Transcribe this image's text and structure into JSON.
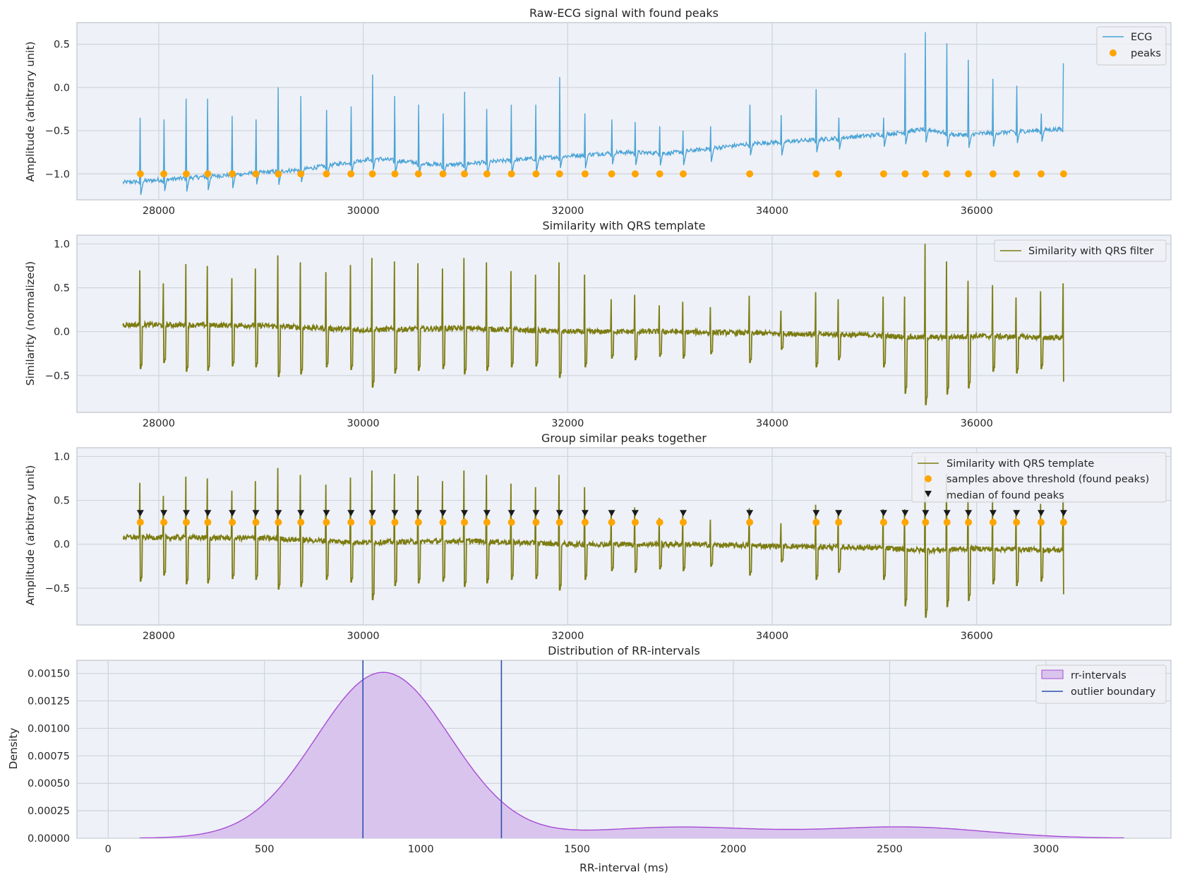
{
  "colors": {
    "background": "#eef1f7",
    "grid": "#cfd3db",
    "frame": "#bfc4cc",
    "ecg": "#4aa3d6",
    "similarity": "#7c7c12",
    "peaks": "#ffa500",
    "median_marker": "#1a1a1a",
    "rr_fill": "#d9c4ee",
    "rr_line": "#a64dd4",
    "outlier": "#2f4fb0"
  },
  "chart_data": [
    {
      "type": "line",
      "title": "Raw-ECG signal with found peaks",
      "xlabel": "",
      "ylabel": "Amplitude (arbitrary unit)",
      "xlim": [
        27200,
        37900
      ],
      "ylim": [
        -1.3,
        0.75
      ],
      "xticks": [
        28000,
        30000,
        32000,
        34000,
        36000
      ],
      "yticks": [
        0.5,
        0.0,
        -0.5,
        -1.0
      ],
      "ytick_labels": [
        "0.5",
        "0.0",
        "−0.5",
        "−1.0"
      ],
      "grid": true,
      "legend_position": "top-right",
      "series": [
        {
          "name": "ECG",
          "kind": "line",
          "color": "#4aa3d6",
          "baseline": [
            [
              27650,
              -1.1
            ],
            [
              28600,
              -1.02
            ],
            [
              29400,
              -0.95
            ],
            [
              30100,
              -0.82
            ],
            [
              30800,
              -0.9
            ],
            [
              31700,
              -0.82
            ],
            [
              32500,
              -0.75
            ],
            [
              33000,
              -0.76
            ],
            [
              33800,
              -0.65
            ],
            [
              34500,
              -0.6
            ],
            [
              35200,
              -0.53
            ],
            [
              35500,
              -0.48
            ],
            [
              35800,
              -0.55
            ],
            [
              36850,
              -0.48
            ]
          ],
          "r_peaks": [
            [
              27820,
              -0.35
            ],
            [
              28050,
              -0.37
            ],
            [
              28270,
              -0.13
            ],
            [
              28480,
              -0.13
            ],
            [
              28720,
              -0.33
            ],
            [
              28950,
              -0.37
            ],
            [
              29170,
              0.0
            ],
            [
              29390,
              -0.1
            ],
            [
              29640,
              -0.26
            ],
            [
              29880,
              -0.22
            ],
            [
              30090,
              0.15
            ],
            [
              30310,
              -0.1
            ],
            [
              30540,
              -0.2
            ],
            [
              30780,
              -0.3
            ],
            [
              30990,
              -0.05
            ],
            [
              31210,
              -0.25
            ],
            [
              31450,
              -0.2
            ],
            [
              31690,
              -0.2
            ],
            [
              31920,
              0.12
            ],
            [
              32170,
              -0.3
            ],
            [
              32430,
              -0.37
            ],
            [
              32660,
              -0.4
            ],
            [
              32900,
              -0.45
            ],
            [
              33130,
              -0.5
            ],
            [
              33400,
              -0.45
            ],
            [
              33780,
              -0.2
            ],
            [
              34090,
              -0.32
            ],
            [
              34430,
              -0.02
            ],
            [
              34650,
              -0.35
            ],
            [
              35090,
              -0.35
            ],
            [
              35300,
              0.4
            ],
            [
              35500,
              0.64
            ],
            [
              35710,
              0.51
            ],
            [
              35920,
              0.32
            ],
            [
              36160,
              0.1
            ],
            [
              36390,
              0.02
            ],
            [
              36630,
              -0.3
            ],
            [
              36850,
              0.28
            ]
          ]
        },
        {
          "name": "peaks",
          "kind": "marker",
          "color": "#ffa500",
          "x": [
            27820,
            28050,
            28270,
            28480,
            28720,
            28950,
            29170,
            29390,
            29640,
            29880,
            30090,
            30310,
            30540,
            30780,
            30990,
            31210,
            31450,
            31690,
            31920,
            32170,
            32430,
            32660,
            32900,
            33130,
            33780,
            34430,
            34650,
            35090,
            35300,
            35500,
            35710,
            35920,
            36160,
            36390,
            36630,
            36850
          ],
          "y": -1.0
        }
      ]
    },
    {
      "type": "line",
      "title": "Similarity with QRS template",
      "xlabel": "",
      "ylabel": "Similarity (normalized)",
      "xlim": [
        27200,
        37900
      ],
      "ylim": [
        -0.92,
        1.1
      ],
      "xticks": [
        28000,
        30000,
        32000,
        34000,
        36000
      ],
      "yticks": [
        1.0,
        0.5,
        0.0,
        -0.5
      ],
      "ytick_labels": [
        "1.0",
        "0.5",
        "0.0",
        "−0.5"
      ],
      "grid": true,
      "legend_position": "top-right",
      "series": [
        {
          "name": "Similarity with QRS filter",
          "kind": "line",
          "color": "#7c7c12",
          "baseline": [
            [
              27650,
              0.08
            ],
            [
              29000,
              0.07
            ],
            [
              30000,
              0.02
            ],
            [
              31000,
              0.04
            ],
            [
              32000,
              0.0
            ],
            [
              33000,
              0.0
            ],
            [
              34000,
              -0.02
            ],
            [
              35000,
              -0.04
            ],
            [
              35500,
              -0.07
            ],
            [
              36000,
              -0.05
            ],
            [
              36850,
              -0.07
            ]
          ],
          "peaks": [
            [
              27820,
              0.7,
              -0.42
            ],
            [
              28050,
              0.55,
              -0.35
            ],
            [
              28270,
              0.77,
              -0.45
            ],
            [
              28480,
              0.75,
              -0.44
            ],
            [
              28720,
              0.61,
              -0.39
            ],
            [
              28950,
              0.72,
              -0.4
            ],
            [
              29170,
              0.87,
              -0.51
            ],
            [
              29390,
              0.79,
              -0.48
            ],
            [
              29640,
              0.68,
              -0.4
            ],
            [
              29880,
              0.76,
              -0.43
            ],
            [
              30090,
              0.84,
              -0.63
            ],
            [
              30310,
              0.8,
              -0.47
            ],
            [
              30540,
              0.78,
              -0.44
            ],
            [
              30780,
              0.72,
              -0.42
            ],
            [
              30990,
              0.84,
              -0.48
            ],
            [
              31210,
              0.79,
              -0.44
            ],
            [
              31450,
              0.69,
              -0.4
            ],
            [
              31690,
              0.65,
              -0.39
            ],
            [
              31920,
              0.79,
              -0.52
            ],
            [
              32170,
              0.65,
              -0.4
            ],
            [
              32430,
              0.37,
              -0.3
            ],
            [
              32660,
              0.42,
              -0.32
            ],
            [
              32900,
              0.3,
              -0.28
            ],
            [
              33130,
              0.34,
              -0.3
            ],
            [
              33400,
              0.28,
              -0.25
            ],
            [
              33780,
              0.41,
              -0.35
            ],
            [
              34090,
              0.24,
              -0.2
            ],
            [
              34430,
              0.45,
              -0.4
            ],
            [
              34650,
              0.37,
              -0.32
            ],
            [
              35090,
              0.4,
              -0.4
            ],
            [
              35300,
              0.4,
              -0.7
            ],
            [
              35500,
              1.0,
              -0.83
            ],
            [
              35710,
              0.8,
              -0.71
            ],
            [
              35920,
              0.58,
              -0.64
            ],
            [
              36160,
              0.53,
              -0.45
            ],
            [
              36390,
              0.39,
              -0.47
            ],
            [
              36630,
              0.46,
              -0.42
            ],
            [
              36850,
              0.55,
              -0.57
            ]
          ]
        }
      ]
    },
    {
      "type": "line",
      "title": "Group similar peaks together",
      "xlabel": "",
      "ylabel": "Amplitude (arbitrary unit)",
      "xlim": [
        27200,
        37900
      ],
      "ylim": [
        -0.92,
        1.1
      ],
      "xticks": [
        28000,
        30000,
        32000,
        34000,
        36000
      ],
      "yticks": [
        1.0,
        0.5,
        0.0,
        -0.5
      ],
      "ytick_labels": [
        "1.0",
        "0.5",
        "0.0",
        "−0.5"
      ],
      "grid": true,
      "legend_position": "top-right",
      "series": [
        {
          "name": "Similarity with QRS template",
          "kind": "line",
          "color": "#7c7c12"
        },
        {
          "name": "samples above threshold (found peaks)",
          "kind": "marker",
          "color": "#ffa500",
          "x": [
            27820,
            28050,
            28270,
            28480,
            28720,
            28950,
            29170,
            29390,
            29640,
            29880,
            30090,
            30310,
            30540,
            30780,
            30990,
            31210,
            31450,
            31690,
            31920,
            32170,
            32430,
            32660,
            32900,
            33130,
            33780,
            34430,
            34650,
            35090,
            35300,
            35500,
            35710,
            35920,
            36160,
            36390,
            36630,
            36850
          ],
          "y": 0.25
        },
        {
          "name": "median of found peaks",
          "kind": "triangle-down",
          "color": "#1a1a1a",
          "x": [
            27820,
            28050,
            28270,
            28480,
            28720,
            28950,
            29170,
            29390,
            29640,
            29880,
            30090,
            30310,
            30540,
            30780,
            30990,
            31210,
            31450,
            31690,
            31920,
            32170,
            32430,
            32660,
            33130,
            33780,
            34430,
            34650,
            35090,
            35300,
            35500,
            35710,
            35920,
            36160,
            36390,
            36630,
            36850
          ],
          "y": 0.35
        }
      ]
    },
    {
      "type": "area",
      "title": "Distribution of RR-intervals",
      "xlabel": "RR-interval (ms)",
      "ylabel": "Density",
      "xlim": [
        -100,
        3400
      ],
      "ylim": [
        0,
        0.00162
      ],
      "xticks": [
        0,
        500,
        1000,
        1500,
        2000,
        2500,
        3000
      ],
      "yticks": [
        0.0,
        0.00025,
        0.0005,
        0.00075,
        0.001,
        0.00125,
        0.0015
      ],
      "ytick_labels": [
        "0.00000",
        "0.00025",
        "0.00050",
        "0.00075",
        "0.00100",
        "0.00125",
        "0.00150"
      ],
      "grid": true,
      "legend_position": "top-right",
      "series": [
        {
          "name": "rr-intervals",
          "kind": "kde",
          "color": "#a64dd4",
          "x_range": [
            100,
            3250
          ],
          "components": [
            {
              "mean": 880,
              "sd": 215,
              "height": 0.00151
            },
            {
              "mean": 1820,
              "sd": 280,
              "height": 0.0001
            },
            {
              "mean": 2550,
              "sd": 260,
              "height": 0.0001
            }
          ]
        },
        {
          "name": "outlier boundary",
          "kind": "vline",
          "color": "#2f4fb0",
          "x": [
            815,
            1258
          ]
        }
      ]
    }
  ]
}
